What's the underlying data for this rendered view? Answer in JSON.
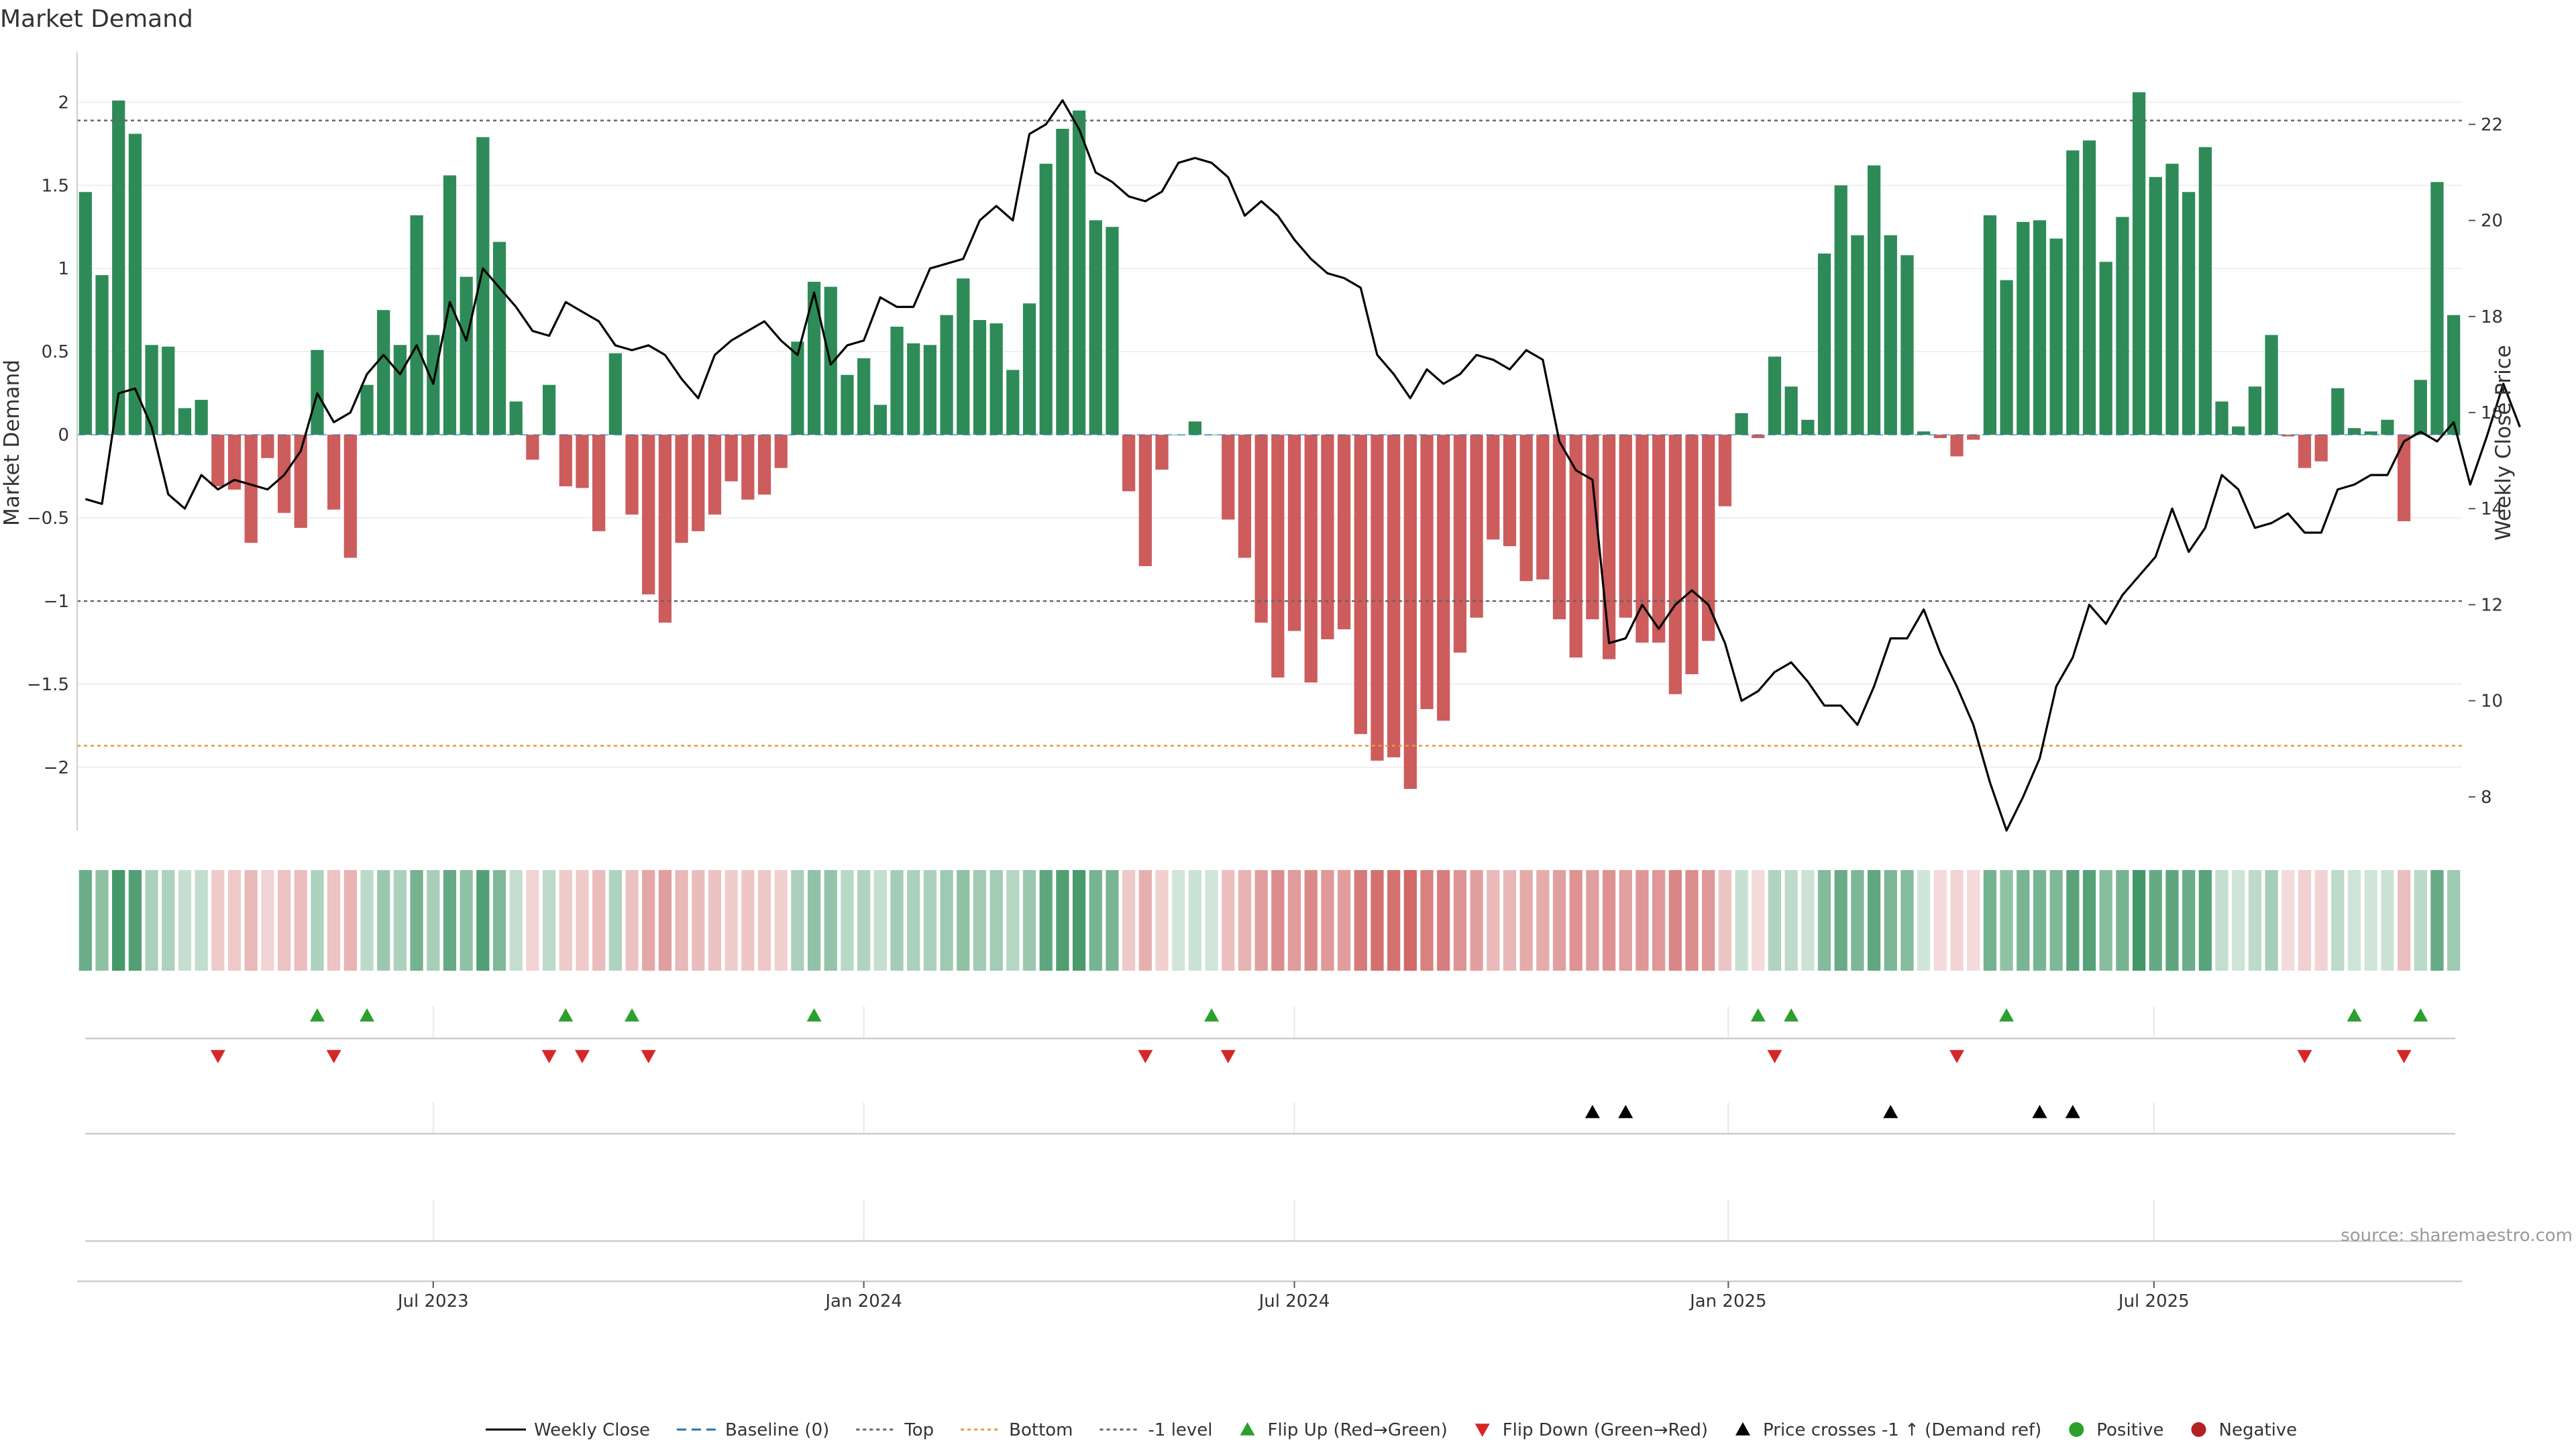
{
  "colors": {
    "green": "#2e8b57",
    "red": "#cd5c5c",
    "flip_up": "#2ca02c",
    "flip_down": "#d62728",
    "top_line": "#666666",
    "bottom_line": "#e69b3a",
    "neg1_line": "#666666",
    "baseline": "#1f77b4",
    "price": "#000000"
  },
  "chart_data": {
    "type": "bar",
    "title": "Market Demand",
    "ylabel_left": "Market Demand",
    "ylabel_right": "Weekly Close Price",
    "ylim_left": [
      -2.38,
      2.3
    ],
    "ylim_right": [
      7.3,
      23.5
    ],
    "yticks_left": [
      -2,
      -1.5,
      -1,
      -0.5,
      0,
      0.5,
      1,
      1.5,
      2
    ],
    "ytick_labels_left": [
      "−2",
      "−1.5",
      "−1",
      "−0.5",
      "0",
      "0.5",
      "1",
      "1.5",
      "2"
    ],
    "yticks_right": [
      8,
      10,
      12,
      14,
      16,
      18,
      20,
      22
    ],
    "ytick_labels_right": [
      "8",
      "10",
      "12",
      "14",
      "16",
      "18",
      "20",
      "22"
    ],
    "xticks": [
      {
        "week": 21.5,
        "label": "Jul 2023"
      },
      {
        "week": 47.5,
        "label": "Jan 2024"
      },
      {
        "week": 73.5,
        "label": "Jul 2024"
      },
      {
        "week": 99.7,
        "label": "Jan 2025"
      },
      {
        "week": 125.4,
        "label": "Jul 2025"
      }
    ],
    "reference_lines": {
      "top": 1.89,
      "bottom": -1.87,
      "minus_one": -1.0,
      "baseline": 0
    },
    "series": [
      {
        "name": "Market Demand",
        "values": [
          1.46,
          0.96,
          2.01,
          1.81,
          0.54,
          0.53,
          0.16,
          0.21,
          -0.31,
          -0.33,
          -0.65,
          -0.14,
          -0.47,
          -0.56,
          0.51,
          -0.45,
          -0.74,
          0.3,
          0.75,
          0.54,
          1.32,
          0.6,
          1.56,
          0.95,
          1.79,
          1.16,
          0.2,
          -0.15,
          0.3,
          -0.31,
          -0.32,
          -0.58,
          0.49,
          -0.48,
          -0.96,
          -1.13,
          -0.65,
          -0.58,
          -0.48,
          -0.28,
          -0.39,
          -0.36,
          -0.2,
          0.56,
          0.92,
          0.89,
          0.36,
          0.46,
          0.18,
          0.65,
          0.55,
          0.54,
          0.72,
          0.94,
          0.69,
          0.67,
          0.39,
          0.79,
          1.63,
          1.84,
          1.95,
          1.29,
          1.25,
          -0.34,
          -0.79,
          -0.21,
          0.0,
          0.08,
          0.0,
          -0.51,
          -0.74,
          -1.13,
          -1.46,
          -1.18,
          -1.49,
          -1.23,
          -1.17,
          -1.8,
          -1.96,
          -1.94,
          -2.13,
          -1.65,
          -1.72,
          -1.31,
          -1.1,
          -0.63,
          -0.67,
          -0.88,
          -0.87,
          -1.11,
          -1.34,
          -1.11,
          -1.35,
          -1.1,
          -1.25,
          -1.25,
          -1.56,
          -1.44,
          -1.24,
          -0.43,
          0.13,
          -0.02,
          0.47,
          0.29,
          0.09,
          1.09,
          1.5,
          1.2,
          1.62,
          1.2,
          1.08,
          0.02,
          -0.02,
          -0.13,
          -0.03,
          1.32,
          0.93,
          1.28,
          1.29,
          1.18,
          1.71,
          1.77,
          1.04,
          1.31,
          2.06,
          1.55,
          1.63,
          1.46,
          1.73,
          0.2,
          0.05,
          0.29,
          0.6,
          -0.01,
          -0.2,
          -0.16,
          0.28,
          0.04,
          0.02,
          0.09,
          -0.52,
          0.33,
          1.52,
          0.72
        ]
      },
      {
        "name": "Weekly Close",
        "values": [
          14.2,
          14.1,
          16.4,
          16.5,
          15.7,
          14.3,
          14.0,
          14.7,
          14.4,
          14.6,
          14.5,
          14.4,
          14.7,
          15.2,
          16.4,
          15.8,
          16.0,
          16.8,
          17.2,
          16.8,
          17.4,
          16.6,
          18.3,
          17.5,
          19.0,
          18.6,
          18.2,
          17.7,
          17.6,
          18.3,
          18.1,
          17.9,
          17.4,
          17.3,
          17.4,
          17.2,
          16.7,
          16.3,
          17.2,
          17.5,
          17.7,
          17.9,
          17.5,
          17.2,
          18.5,
          17.0,
          17.4,
          17.5,
          18.4,
          18.2,
          18.2,
          19.0,
          19.1,
          19.2,
          20.0,
          20.3,
          20.0,
          21.8,
          22.0,
          22.5,
          21.9,
          21.0,
          20.8,
          20.5,
          20.4,
          20.6,
          21.2,
          21.3,
          21.2,
          20.9,
          20.1,
          20.4,
          20.1,
          19.6,
          19.2,
          18.9,
          18.8,
          18.6,
          17.2,
          16.8,
          16.3,
          16.9,
          16.6,
          16.8,
          17.2,
          17.1,
          16.9,
          17.3,
          17.1,
          15.4,
          14.8,
          14.6,
          11.2,
          11.3,
          12.0,
          11.5,
          12.0,
          12.3,
          12.0,
          11.2,
          10.0,
          10.2,
          10.6,
          10.8,
          10.4,
          9.9,
          9.9,
          9.5,
          10.3,
          11.3,
          11.3,
          11.9,
          11.0,
          10.3,
          9.5,
          8.3,
          7.3,
          8.0,
          8.8,
          10.3,
          10.9,
          12.0,
          11.6,
          12.2,
          12.6,
          13.0,
          14.0,
          13.1,
          13.6,
          14.7,
          14.4,
          13.6,
          13.7,
          13.9,
          13.5,
          13.5,
          14.4,
          14.5,
          14.7,
          14.7,
          15.4,
          15.6,
          15.4,
          15.8,
          14.5,
          15.5,
          16.6,
          15.7
        ]
      }
    ],
    "flip_up_weeks": [
      14,
      17,
      29,
      33,
      44,
      68,
      101,
      103,
      116,
      137,
      141
    ],
    "flip_down_weeks": [
      8,
      15,
      28,
      30,
      34,
      64,
      69,
      102,
      113,
      134,
      140
    ],
    "price_cross_weeks": [
      91,
      93,
      109,
      118,
      120
    ]
  },
  "legend": [
    {
      "label": "Weekly Close",
      "kind": "line-solid",
      "color": "#000000"
    },
    {
      "label": "Baseline (0)",
      "kind": "line-dash",
      "color": "#1f77b4"
    },
    {
      "label": "Top",
      "kind": "line-dot",
      "color": "#666666"
    },
    {
      "label": "Bottom",
      "kind": "line-dot",
      "color": "#e69b3a"
    },
    {
      "label": "-1 level",
      "kind": "line-dot",
      "color": "#666666"
    },
    {
      "label": "Flip Up (Red→Green)",
      "kind": "tri-up",
      "color": "#2ca02c"
    },
    {
      "label": "Flip Down (Green→Red)",
      "kind": "tri-down",
      "color": "#d62728"
    },
    {
      "label": "Price crosses -1 ↑ (Demand ref)",
      "kind": "tri-up",
      "color": "#000000"
    },
    {
      "label": "Positive",
      "kind": "dot",
      "color": "#2ca02c"
    },
    {
      "label": "Negative",
      "kind": "dot",
      "color": "#b22222"
    }
  ],
  "source": "source: sharemaestro.com"
}
